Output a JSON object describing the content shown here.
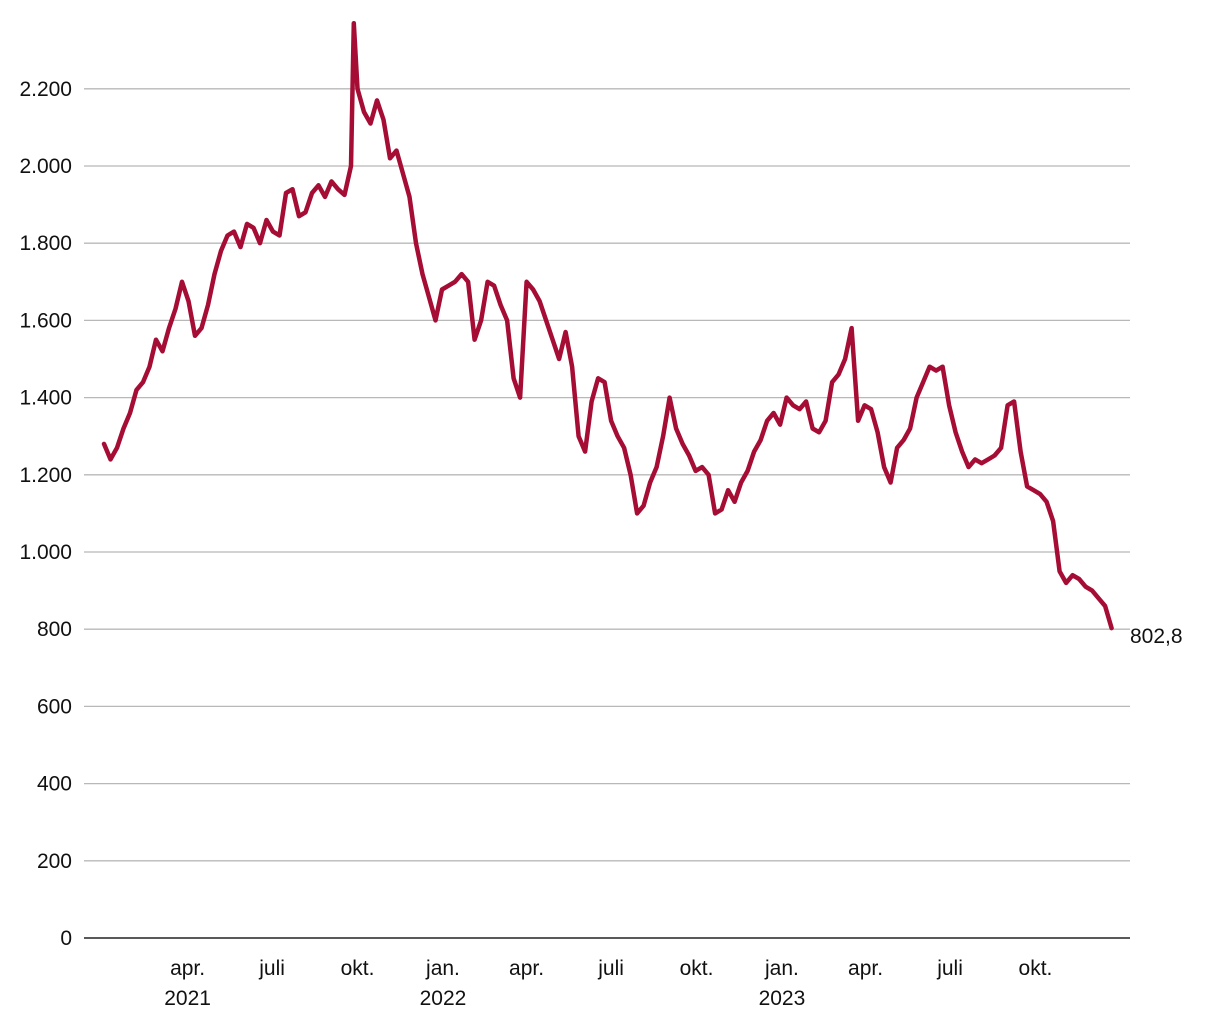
{
  "chart_data": {
    "type": "line",
    "title": "",
    "xlabel": "",
    "ylabel": "",
    "ylim": [
      0,
      2200
    ],
    "xlim": [
      "2021-01-01",
      "2023-12-31"
    ],
    "yticks": [
      0,
      200,
      400,
      600,
      800,
      1000,
      1200,
      1400,
      1600,
      1800,
      2000,
      2200
    ],
    "ytick_labels": [
      "0",
      "200",
      "400",
      "600",
      "800",
      "1.000",
      "1.200",
      "1.400",
      "1.600",
      "1.800",
      "2.000",
      "2.200"
    ],
    "xticks": [
      {
        "date": "2021-04-01",
        "label": "apr.",
        "year": "2021"
      },
      {
        "date": "2021-07-01",
        "label": "juli",
        "year": ""
      },
      {
        "date": "2021-10-01",
        "label": "okt.",
        "year": ""
      },
      {
        "date": "2022-01-01",
        "label": "jan.",
        "year": "2022"
      },
      {
        "date": "2022-04-01",
        "label": "apr.",
        "year": ""
      },
      {
        "date": "2022-07-01",
        "label": "juli",
        "year": ""
      },
      {
        "date": "2022-10-01",
        "label": "okt.",
        "year": ""
      },
      {
        "date": "2023-01-01",
        "label": "jan.",
        "year": "2023"
      },
      {
        "date": "2023-04-01",
        "label": "apr.",
        "year": ""
      },
      {
        "date": "2023-07-01",
        "label": "juli",
        "year": ""
      },
      {
        "date": "2023-10-01",
        "label": "okt.",
        "year": ""
      }
    ],
    "grid": true,
    "line_color": "#a50d35",
    "end_label": "802,8",
    "series": [
      {
        "x": [
          "2021-01-01",
          "2021-01-08",
          "2021-01-15",
          "2021-01-22",
          "2021-01-29",
          "2021-02-05",
          "2021-02-12",
          "2021-02-19",
          "2021-02-26",
          "2021-03-05",
          "2021-03-12",
          "2021-03-19",
          "2021-03-26",
          "2021-04-02",
          "2021-04-09",
          "2021-04-16",
          "2021-04-23",
          "2021-04-30",
          "2021-05-07",
          "2021-05-14",
          "2021-05-21",
          "2021-05-28",
          "2021-06-04",
          "2021-06-11",
          "2021-06-18",
          "2021-06-25",
          "2021-07-02",
          "2021-07-09",
          "2021-07-16",
          "2021-07-23",
          "2021-07-30",
          "2021-08-06",
          "2021-08-13",
          "2021-08-20",
          "2021-08-27",
          "2021-09-03",
          "2021-09-10",
          "2021-09-17",
          "2021-09-24",
          "2021-09-27",
          "2021-10-01",
          "2021-10-08",
          "2021-10-15",
          "2021-10-22",
          "2021-10-29",
          "2021-11-05",
          "2021-11-12",
          "2021-11-19",
          "2021-11-26",
          "2021-12-03",
          "2021-12-10",
          "2021-12-17",
          "2021-12-24",
          "2021-12-31",
          "2022-01-07",
          "2022-01-14",
          "2022-01-21",
          "2022-01-28",
          "2022-02-04",
          "2022-02-11",
          "2022-02-18",
          "2022-02-25",
          "2022-03-04",
          "2022-03-11",
          "2022-03-18",
          "2022-03-25",
          "2022-04-01",
          "2022-04-08",
          "2022-04-15",
          "2022-04-22",
          "2022-04-29",
          "2022-05-06",
          "2022-05-13",
          "2022-05-20",
          "2022-05-27",
          "2022-06-03",
          "2022-06-10",
          "2022-06-17",
          "2022-06-24",
          "2022-07-01",
          "2022-07-08",
          "2022-07-15",
          "2022-07-22",
          "2022-07-29",
          "2022-08-05",
          "2022-08-12",
          "2022-08-19",
          "2022-08-26",
          "2022-09-02",
          "2022-09-09",
          "2022-09-16",
          "2022-09-23",
          "2022-09-30",
          "2022-10-07",
          "2022-10-14",
          "2022-10-21",
          "2022-10-28",
          "2022-11-04",
          "2022-11-11",
          "2022-11-18",
          "2022-11-25",
          "2022-12-02",
          "2022-12-09",
          "2022-12-16",
          "2022-12-23",
          "2022-12-30",
          "2023-01-06",
          "2023-01-13",
          "2023-01-20",
          "2023-01-27",
          "2023-02-03",
          "2023-02-10",
          "2023-02-17",
          "2023-02-24",
          "2023-03-03",
          "2023-03-10",
          "2023-03-17",
          "2023-03-24",
          "2023-03-31",
          "2023-04-07",
          "2023-04-14",
          "2023-04-21",
          "2023-04-28",
          "2023-05-05",
          "2023-05-12",
          "2023-05-19",
          "2023-05-26",
          "2023-06-02",
          "2023-06-09",
          "2023-06-16",
          "2023-06-23",
          "2023-06-30",
          "2023-07-07",
          "2023-07-14",
          "2023-07-21",
          "2023-07-28",
          "2023-08-04",
          "2023-08-11",
          "2023-08-18",
          "2023-08-25",
          "2023-09-01",
          "2023-09-08",
          "2023-09-15",
          "2023-09-22",
          "2023-09-29",
          "2023-10-06",
          "2023-10-13",
          "2023-10-20",
          "2023-10-27",
          "2023-11-03",
          "2023-11-10",
          "2023-11-17",
          "2023-11-24",
          "2023-12-01",
          "2023-12-08",
          "2023-12-15",
          "2023-12-22"
        ],
        "y": [
          1280,
          1240,
          1270,
          1320,
          1360,
          1420,
          1440,
          1480,
          1550,
          1520,
          1580,
          1630,
          1700,
          1650,
          1560,
          1580,
          1640,
          1720,
          1780,
          1820,
          1830,
          1790,
          1850,
          1840,
          1800,
          1860,
          1830,
          1820,
          1930,
          1940,
          1870,
          1880,
          1930,
          1950,
          1920,
          1960,
          1940,
          1925,
          2000,
          2370,
          2200,
          2140,
          2110,
          2170,
          2120,
          2020,
          2040,
          1980,
          1920,
          1800,
          1720,
          1660,
          1600,
          1680,
          1690,
          1700,
          1720,
          1700,
          1550,
          1600,
          1700,
          1690,
          1640,
          1600,
          1450,
          1400,
          1700,
          1680,
          1650,
          1600,
          1550,
          1500,
          1570,
          1480,
          1300,
          1260,
          1390,
          1450,
          1440,
          1340,
          1300,
          1270,
          1200,
          1100,
          1120,
          1180,
          1220,
          1300,
          1400,
          1320,
          1280,
          1250,
          1210,
          1220,
          1200,
          1100,
          1110,
          1160,
          1130,
          1180,
          1210,
          1260,
          1290,
          1340,
          1360,
          1330,
          1400,
          1380,
          1370,
          1390,
          1320,
          1310,
          1340,
          1440,
          1460,
          1500,
          1580,
          1340,
          1380,
          1370,
          1310,
          1220,
          1180,
          1270,
          1290,
          1320,
          1400,
          1440,
          1480,
          1470,
          1480,
          1380,
          1310,
          1260,
          1220,
          1240,
          1230,
          1240,
          1250,
          1270,
          1380,
          1390,
          1260,
          1170,
          1160,
          1150,
          1130,
          1080,
          950,
          920,
          940,
          930,
          910,
          900,
          880,
          860,
          802.8
        ]
      }
    ]
  }
}
